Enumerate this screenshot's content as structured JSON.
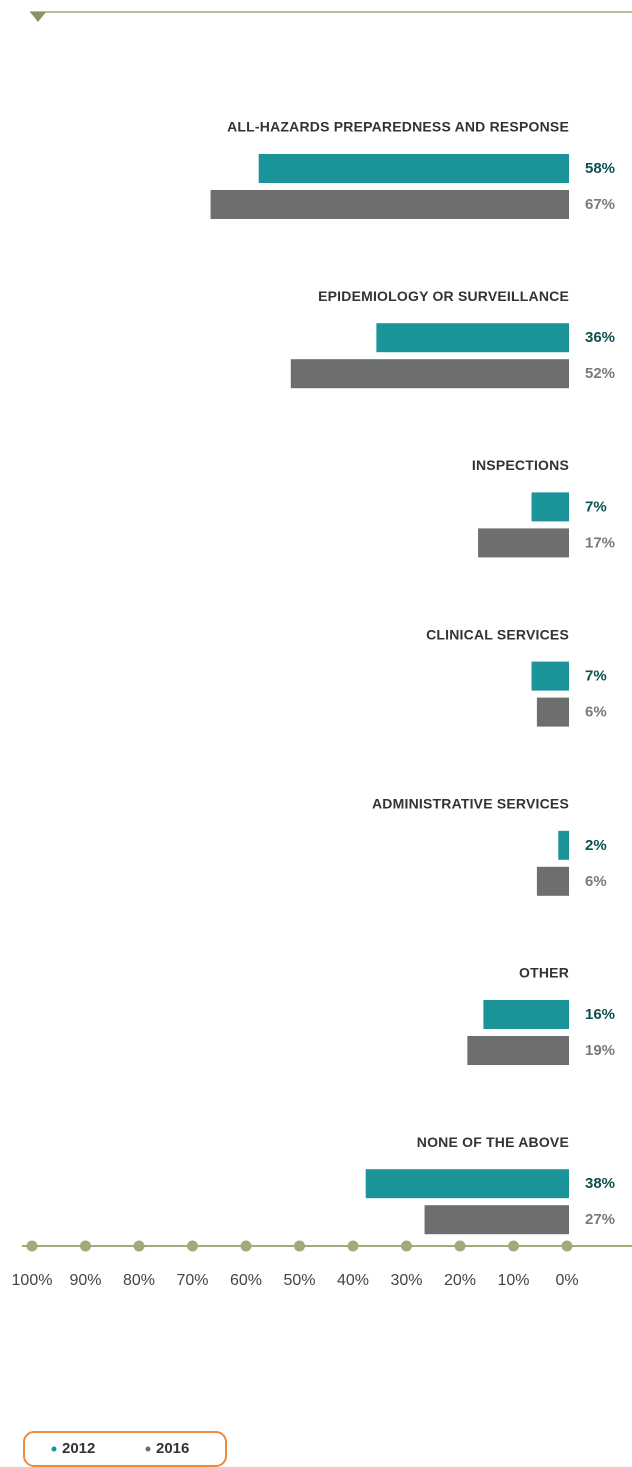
{
  "chart_data": {
    "type": "hbar",
    "categories": [
      "ALL-HAZARDS PREPAREDNESS AND RESPONSE",
      "EPIDEMIOLOGY OR SURVEILLANCE",
      "INSPECTIONS",
      "CLINICAL SERVICES",
      "ADMINISTRATIVE SERVICES",
      "OTHER",
      "NONE OF THE ABOVE"
    ],
    "series": [
      {
        "name": "2012",
        "color": "#1a9399",
        "values": [
          58,
          36,
          7,
          7,
          2,
          16,
          38
        ],
        "value_labels": [
          "58%",
          "36%",
          "7%",
          "7%",
          "2%",
          "16%",
          "38%"
        ]
      },
      {
        "name": "2016",
        "color": "#6d6e70",
        "values": [
          67,
          52,
          17,
          6,
          6,
          19,
          27
        ],
        "value_labels": [
          "67%",
          "52%",
          "17%",
          "6%",
          "6%",
          "19%",
          "27%"
        ]
      }
    ],
    "xlim": [
      0,
      100
    ],
    "xticks": [
      {
        "value": 100,
        "label": "100%"
      },
      {
        "value": 90,
        "label": "90%"
      },
      {
        "value": 80,
        "label": "80%"
      },
      {
        "value": 70,
        "label": "70%"
      },
      {
        "value": 60,
        "label": "60%"
      },
      {
        "value": 50,
        "label": "50%"
      },
      {
        "value": 40,
        "label": "40%"
      },
      {
        "value": 30,
        "label": "30%"
      },
      {
        "value": 20,
        "label": "20%"
      },
      {
        "value": 10,
        "label": "10%"
      },
      {
        "value": 0,
        "label": "0%"
      }
    ]
  }
}
